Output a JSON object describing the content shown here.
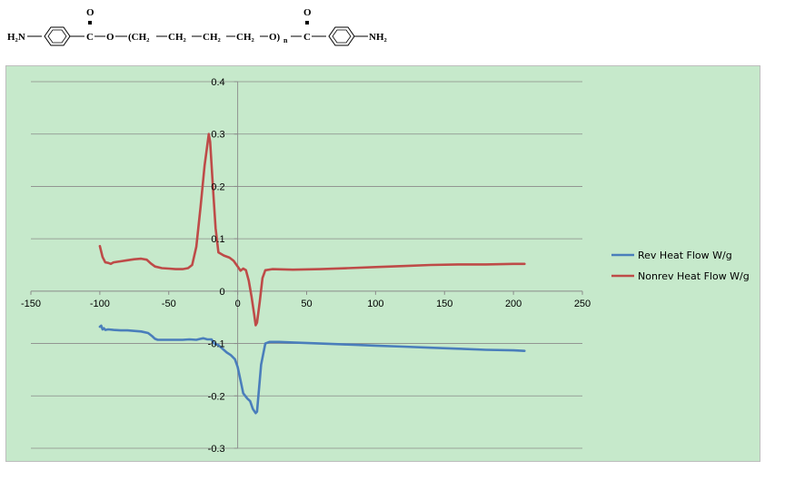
{
  "formula": {
    "h2n": "H₂N",
    "carbonyl_o": "O",
    "c": "C",
    "o": "O",
    "ch2_1": "(CH₂",
    "ch2_2": "CH₂",
    "ch2_3": "CH₂",
    "ch2_4": "CH₂",
    "o_n": "O)",
    "n": "n",
    "nh2": "NH₂"
  },
  "chart_data": {
    "type": "line",
    "title": "",
    "xlabel": "",
    "ylabel": "",
    "xlim": [
      -150,
      250
    ],
    "ylim": [
      -0.3,
      0.4
    ],
    "xticks": [
      -150,
      -100,
      -50,
      0,
      50,
      100,
      150,
      200,
      250
    ],
    "yticks": [
      -0.3,
      -0.2,
      -0.1,
      0,
      0.1,
      0.2,
      0.3,
      0.4
    ],
    "grid": "horizontal",
    "legend_position": "right",
    "series": [
      {
        "name": "Rev Heat Flow W/g",
        "color": "#4a7ebb",
        "points": [
          [
            -100,
            -0.068
          ],
          [
            -99,
            -0.066
          ],
          [
            -98,
            -0.073
          ],
          [
            -97,
            -0.071
          ],
          [
            -96,
            -0.074
          ],
          [
            -94,
            -0.073
          ],
          [
            -90,
            -0.074
          ],
          [
            -85,
            -0.075
          ],
          [
            -80,
            -0.075
          ],
          [
            -75,
            -0.076
          ],
          [
            -70,
            -0.077
          ],
          [
            -65,
            -0.08
          ],
          [
            -62,
            -0.086
          ],
          [
            -60,
            -0.091
          ],
          [
            -58,
            -0.093
          ],
          [
            -55,
            -0.093
          ],
          [
            -50,
            -0.093
          ],
          [
            -45,
            -0.093
          ],
          [
            -40,
            -0.093
          ],
          [
            -35,
            -0.092
          ],
          [
            -30,
            -0.093
          ],
          [
            -27,
            -0.091
          ],
          [
            -25,
            -0.09
          ],
          [
            -22,
            -0.092
          ],
          [
            -19,
            -0.092
          ],
          [
            -17,
            -0.1
          ],
          [
            -14,
            -0.103
          ],
          [
            -11,
            -0.11
          ],
          [
            -8,
            -0.117
          ],
          [
            -5,
            -0.122
          ],
          [
            -2,
            -0.13
          ],
          [
            0,
            -0.145
          ],
          [
            2,
            -0.17
          ],
          [
            4,
            -0.195
          ],
          [
            7,
            -0.205
          ],
          [
            9,
            -0.21
          ],
          [
            11,
            -0.225
          ],
          [
            13,
            -0.233
          ],
          [
            14,
            -0.23
          ],
          [
            15,
            -0.2
          ],
          [
            17,
            -0.14
          ],
          [
            20,
            -0.1
          ],
          [
            23,
            -0.097
          ],
          [
            30,
            -0.097
          ],
          [
            40,
            -0.098
          ],
          [
            60,
            -0.1
          ],
          [
            80,
            -0.102
          ],
          [
            100,
            -0.104
          ],
          [
            120,
            -0.106
          ],
          [
            140,
            -0.108
          ],
          [
            160,
            -0.11
          ],
          [
            180,
            -0.112
          ],
          [
            200,
            -0.113
          ],
          [
            208,
            -0.114
          ]
        ]
      },
      {
        "name": "Nonrev Heat Flow W/g",
        "color": "#be4b48",
        "points": [
          [
            -100,
            0.086
          ],
          [
            -98,
            0.065
          ],
          [
            -96,
            0.055
          ],
          [
            -94,
            0.054
          ],
          [
            -92,
            0.052
          ],
          [
            -90,
            0.055
          ],
          [
            -85,
            0.057
          ],
          [
            -80,
            0.059
          ],
          [
            -75,
            0.061
          ],
          [
            -70,
            0.062
          ],
          [
            -66,
            0.06
          ],
          [
            -63,
            0.053
          ],
          [
            -60,
            0.047
          ],
          [
            -55,
            0.044
          ],
          [
            -50,
            0.043
          ],
          [
            -45,
            0.042
          ],
          [
            -40,
            0.042
          ],
          [
            -36,
            0.044
          ],
          [
            -33,
            0.05
          ],
          [
            -30,
            0.085
          ],
          [
            -27,
            0.16
          ],
          [
            -24,
            0.24
          ],
          [
            -21,
            0.3
          ],
          [
            -20,
            0.285
          ],
          [
            -18,
            0.2
          ],
          [
            -16,
            0.12
          ],
          [
            -14,
            0.074
          ],
          [
            -10,
            0.068
          ],
          [
            -6,
            0.064
          ],
          [
            -3,
            0.058
          ],
          [
            0,
            0.047
          ],
          [
            2,
            0.039
          ],
          [
            4,
            0.043
          ],
          [
            6,
            0.04
          ],
          [
            8,
            0.02
          ],
          [
            10,
            -0.01
          ],
          [
            12,
            -0.045
          ],
          [
            13,
            -0.065
          ],
          [
            14,
            -0.06
          ],
          [
            16,
            -0.02
          ],
          [
            18,
            0.025
          ],
          [
            20,
            0.04
          ],
          [
            25,
            0.042
          ],
          [
            40,
            0.041
          ],
          [
            60,
            0.042
          ],
          [
            80,
            0.044
          ],
          [
            100,
            0.046
          ],
          [
            120,
            0.048
          ],
          [
            140,
            0.05
          ],
          [
            160,
            0.051
          ],
          [
            180,
            0.051
          ],
          [
            200,
            0.052
          ],
          [
            208,
            0.052
          ]
        ]
      }
    ]
  }
}
